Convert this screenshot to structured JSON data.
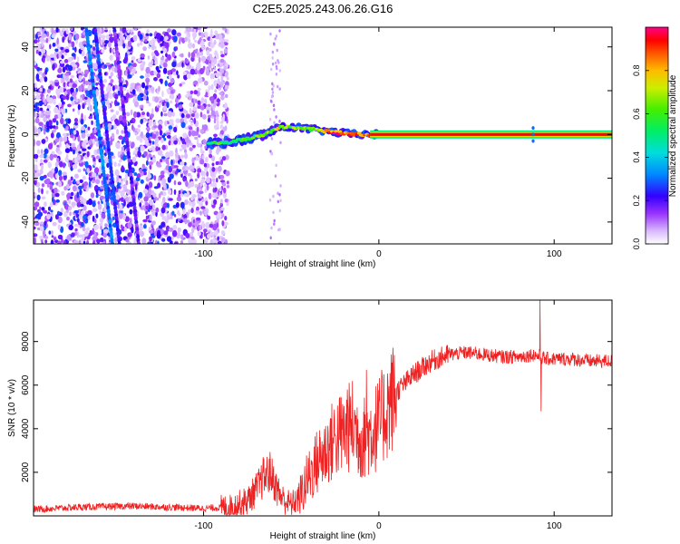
{
  "title": "C2E5.2025.243.06.26.G16",
  "chart_data": [
    {
      "type": "heatmap",
      "xlabel": "Height of straight line (km)",
      "ylabel": "Frequency (Hz)",
      "xlim": [
        -197,
        133
      ],
      "ylim": [
        -50,
        49
      ],
      "x_ticks": [
        -100,
        0,
        100
      ],
      "x_tick_labels": [
        "-100",
        "0",
        "100"
      ],
      "y_ticks": [
        -40,
        -20,
        0,
        20,
        40
      ],
      "y_tick_labels": [
        "-40",
        "-20",
        "0",
        "20",
        "40"
      ],
      "colorbar": {
        "label": "Normalized spectral amplitude",
        "range": [
          0,
          1
        ],
        "ticks": [
          0.0,
          0.2,
          0.4,
          0.6,
          0.8
        ],
        "tick_labels": [
          "0.0",
          "0.2",
          "0.4",
          "0.6",
          "0.8"
        ]
      },
      "features": {
        "noise_region_x": [
          -197,
          -90
        ],
        "diagonal_lines": [
          {
            "x_top": -167,
            "x_bottom": -152,
            "amplitude": 0.25
          },
          {
            "x_top": -151,
            "x_bottom": -137,
            "amplitude": 0.12
          },
          {
            "x_top": -162,
            "x_bottom": -148,
            "amplitude": 0.18
          }
        ],
        "carrier_track": [
          {
            "x": -95,
            "f": -4
          },
          {
            "x": -85,
            "f": -3.5
          },
          {
            "x": -75,
            "f": -2
          },
          {
            "x": -65,
            "f": 0
          },
          {
            "x": -58,
            "f": 3
          },
          {
            "x": -50,
            "f": 3.5
          },
          {
            "x": -40,
            "f": 2.5
          },
          {
            "x": -30,
            "f": 1.5
          },
          {
            "x": -20,
            "f": 0.5
          },
          {
            "x": -10,
            "f": 0
          },
          {
            "x": 0,
            "f": 0
          },
          {
            "x": 133,
            "f": 0
          }
        ]
      }
    },
    {
      "type": "line",
      "xlabel": "Height of straight line (km)",
      "ylabel": "SNR (10 * v/v)",
      "xlim": [
        -197,
        133
      ],
      "ylim": [
        0,
        9900
      ],
      "x_ticks": [
        -100,
        0,
        100
      ],
      "x_tick_labels": [
        "-100",
        "0",
        "100"
      ],
      "y_ticks": [
        2000,
        4000,
        6000,
        8000
      ],
      "y_tick_labels": [
        "2000",
        "4000",
        "6000",
        "8000"
      ],
      "series": [
        {
          "name": "SNR",
          "color": "#ee2222",
          "x": [
            -197,
            -170,
            -140,
            -120,
            -100,
            -85,
            -75,
            -70,
            -65,
            -62,
            -58,
            -55,
            -50,
            -45,
            -40,
            -35,
            -30,
            -25,
            -20,
            -15,
            -10,
            -5,
            0,
            5,
            10,
            15,
            20,
            25,
            30,
            40,
            50,
            60,
            70,
            80,
            88,
            92,
            95,
            100,
            110,
            120,
            133
          ],
          "values": [
            300,
            400,
            450,
            400,
            350,
            400,
            700,
            1200,
            1800,
            2000,
            1200,
            800,
            500,
            900,
            1800,
            2500,
            3000,
            3600,
            3800,
            4200,
            3500,
            3800,
            4200,
            5000,
            5700,
            6100,
            6500,
            6800,
            7100,
            7400,
            7500,
            7400,
            7300,
            7300,
            7400,
            7300,
            7200,
            7200,
            7200,
            7100,
            7100
          ]
        }
      ],
      "spikes": [
        {
          "x": -66,
          "value": 2700
        },
        {
          "x": -18,
          "value": 5800
        },
        {
          "x": -7,
          "value": 6700
        },
        {
          "x": 92,
          "value": 9900
        },
        {
          "x": 92.5,
          "value": 4800
        }
      ]
    }
  ]
}
